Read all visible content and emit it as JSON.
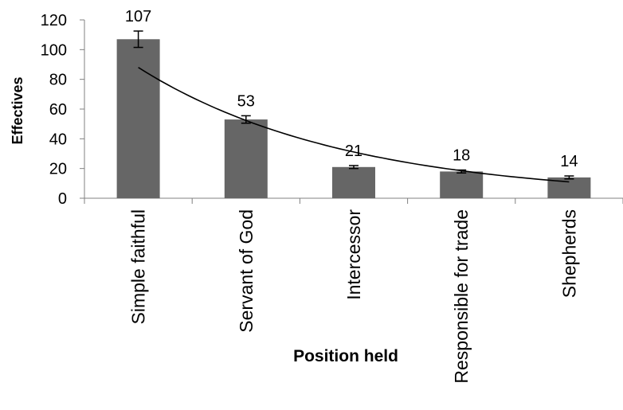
{
  "chart_data": {
    "type": "bar",
    "categories": [
      "Simple faithful",
      "Servant of God",
      "Intercessor",
      "Responsible for trade",
      "Shepherds"
    ],
    "values": [
      107,
      53,
      21,
      18,
      14
    ],
    "error_bars": [
      5.5,
      2.5,
      1,
      1,
      1
    ],
    "data_labels": [
      "107",
      "53",
      "21",
      "18",
      "14"
    ],
    "xlabel": "Position held",
    "ylabel": "Effectives",
    "ylim": [
      0,
      120
    ],
    "yticks": [
      0,
      20,
      40,
      60,
      80,
      100,
      120
    ],
    "bar_color": "#666666",
    "trendline": {
      "type": "exponential",
      "start_value": 88,
      "end_value": 11
    },
    "grid": false,
    "legend": "none"
  }
}
